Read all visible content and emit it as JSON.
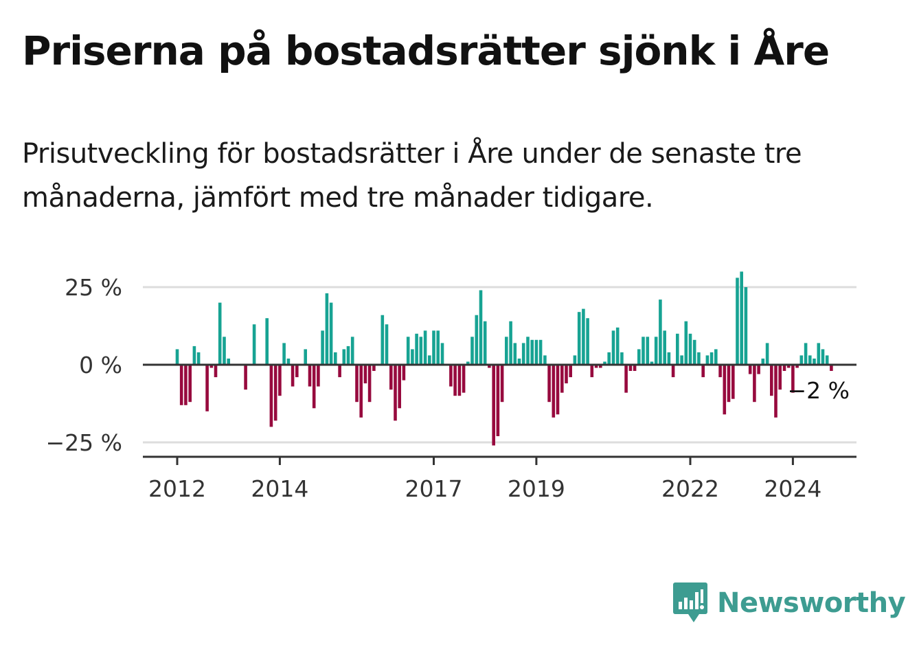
{
  "header": {
    "title": "Priserna på bostadsrätter sjönk i Åre",
    "subtitle": "Prisutveckling för bostadsrätter i Åre under de senaste tre månaderna, jämfört med tre månader tidigare."
  },
  "brand": {
    "name": "Newsworthy",
    "icon": "newsworthy-logo-icon",
    "color": "#3d9c91"
  },
  "chart_data": {
    "type": "bar",
    "title": "",
    "xlabel": "",
    "ylabel": "",
    "y_ticks": [
      {
        "value": 25,
        "label": "25 %"
      },
      {
        "value": 0,
        "label": "0 %"
      },
      {
        "value": -25,
        "label": "−25 %"
      }
    ],
    "ylim": [
      -30,
      30
    ],
    "grid": true,
    "x_ticks": [
      {
        "year": 2012,
        "label": "2012"
      },
      {
        "year": 2014,
        "label": "2014"
      },
      {
        "year": 2017,
        "label": "2017"
      },
      {
        "year": 2019,
        "label": "2019"
      },
      {
        "year": 2022,
        "label": "2022"
      },
      {
        "year": 2024,
        "label": "2024"
      }
    ],
    "start": "2012-01",
    "interval": "month",
    "colors": {
      "positive": "#17a393",
      "negative": "#970a3e",
      "axis": "#333333",
      "grid": "#dddddd"
    },
    "end_label": "−2 %",
    "values": [
      5,
      -13,
      -13,
      -12,
      6,
      4,
      0,
      -15,
      -1,
      -4,
      20,
      9,
      2,
      0,
      0,
      0,
      -8,
      0,
      13,
      0,
      0,
      15,
      -20,
      -18,
      -10,
      7,
      2,
      -7,
      -4,
      0,
      5,
      -7,
      -14,
      -7,
      11,
      23,
      20,
      4,
      -4,
      5,
      6,
      9,
      -12,
      -17,
      -6,
      -12,
      -2,
      0,
      16,
      13,
      -8,
      -18,
      -14,
      -5,
      9,
      5,
      10,
      9,
      11,
      3,
      11,
      11,
      7,
      0,
      -7,
      -10,
      -10,
      -9,
      1,
      9,
      16,
      24,
      14,
      -1,
      -26,
      -23,
      -12,
      9,
      14,
      7,
      2,
      7,
      9,
      8,
      8,
      8,
      3,
      -12,
      -17,
      -16,
      -9,
      -6,
      -4,
      3,
      17,
      18,
      15,
      -4,
      -1,
      -1,
      1,
      4,
      11,
      12,
      4,
      -9,
      -2,
      -2,
      5,
      9,
      9,
      1,
      9,
      21,
      11,
      4,
      -4,
      10,
      3,
      14,
      10,
      8,
      4,
      -4,
      3,
      4,
      5,
      -4,
      -16,
      -12,
      -11,
      28,
      30,
      25,
      -3,
      -12,
      -3,
      2,
      7,
      -10,
      -17,
      -8,
      -2,
      -1,
      -9,
      -1,
      3,
      7,
      3,
      2,
      7,
      5,
      3,
      -2
    ]
  }
}
